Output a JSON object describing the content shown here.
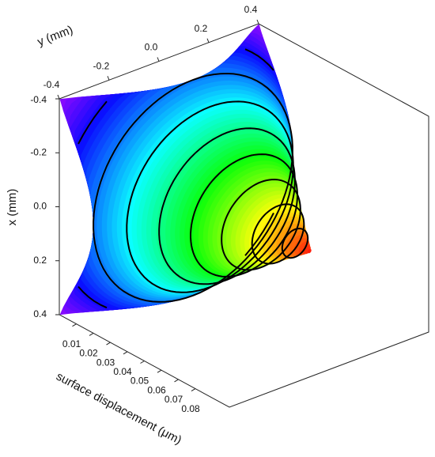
{
  "chart_data": {
    "type": "surface",
    "x_label": "x (mm)",
    "y_label": "y (mm)",
    "z_label": "surface displacement (μm)",
    "xlim": [
      -0.4,
      0.4
    ],
    "xticks": [
      -0.4,
      -0.2,
      {
        "value": 0,
        "label": "0.0"
      },
      0.2,
      0.4
    ],
    "ylim": [
      -0.4,
      0.4
    ],
    "yticks": [
      -0.4,
      -0.2,
      {
        "value": 0,
        "label": "0.0"
      },
      0.2,
      0.4
    ],
    "zlim": [
      0,
      0.1
    ],
    "zticks": [
      0.01,
      0.02,
      0.03,
      0.04,
      0.05,
      0.06,
      0.07,
      0.08
    ],
    "peak": 0.09,
    "contour_levels": [
      0.01,
      0.02,
      0.03,
      0.04,
      0.05,
      0.06,
      0.07,
      0.08
    ],
    "contour_color": "#000000"
  }
}
